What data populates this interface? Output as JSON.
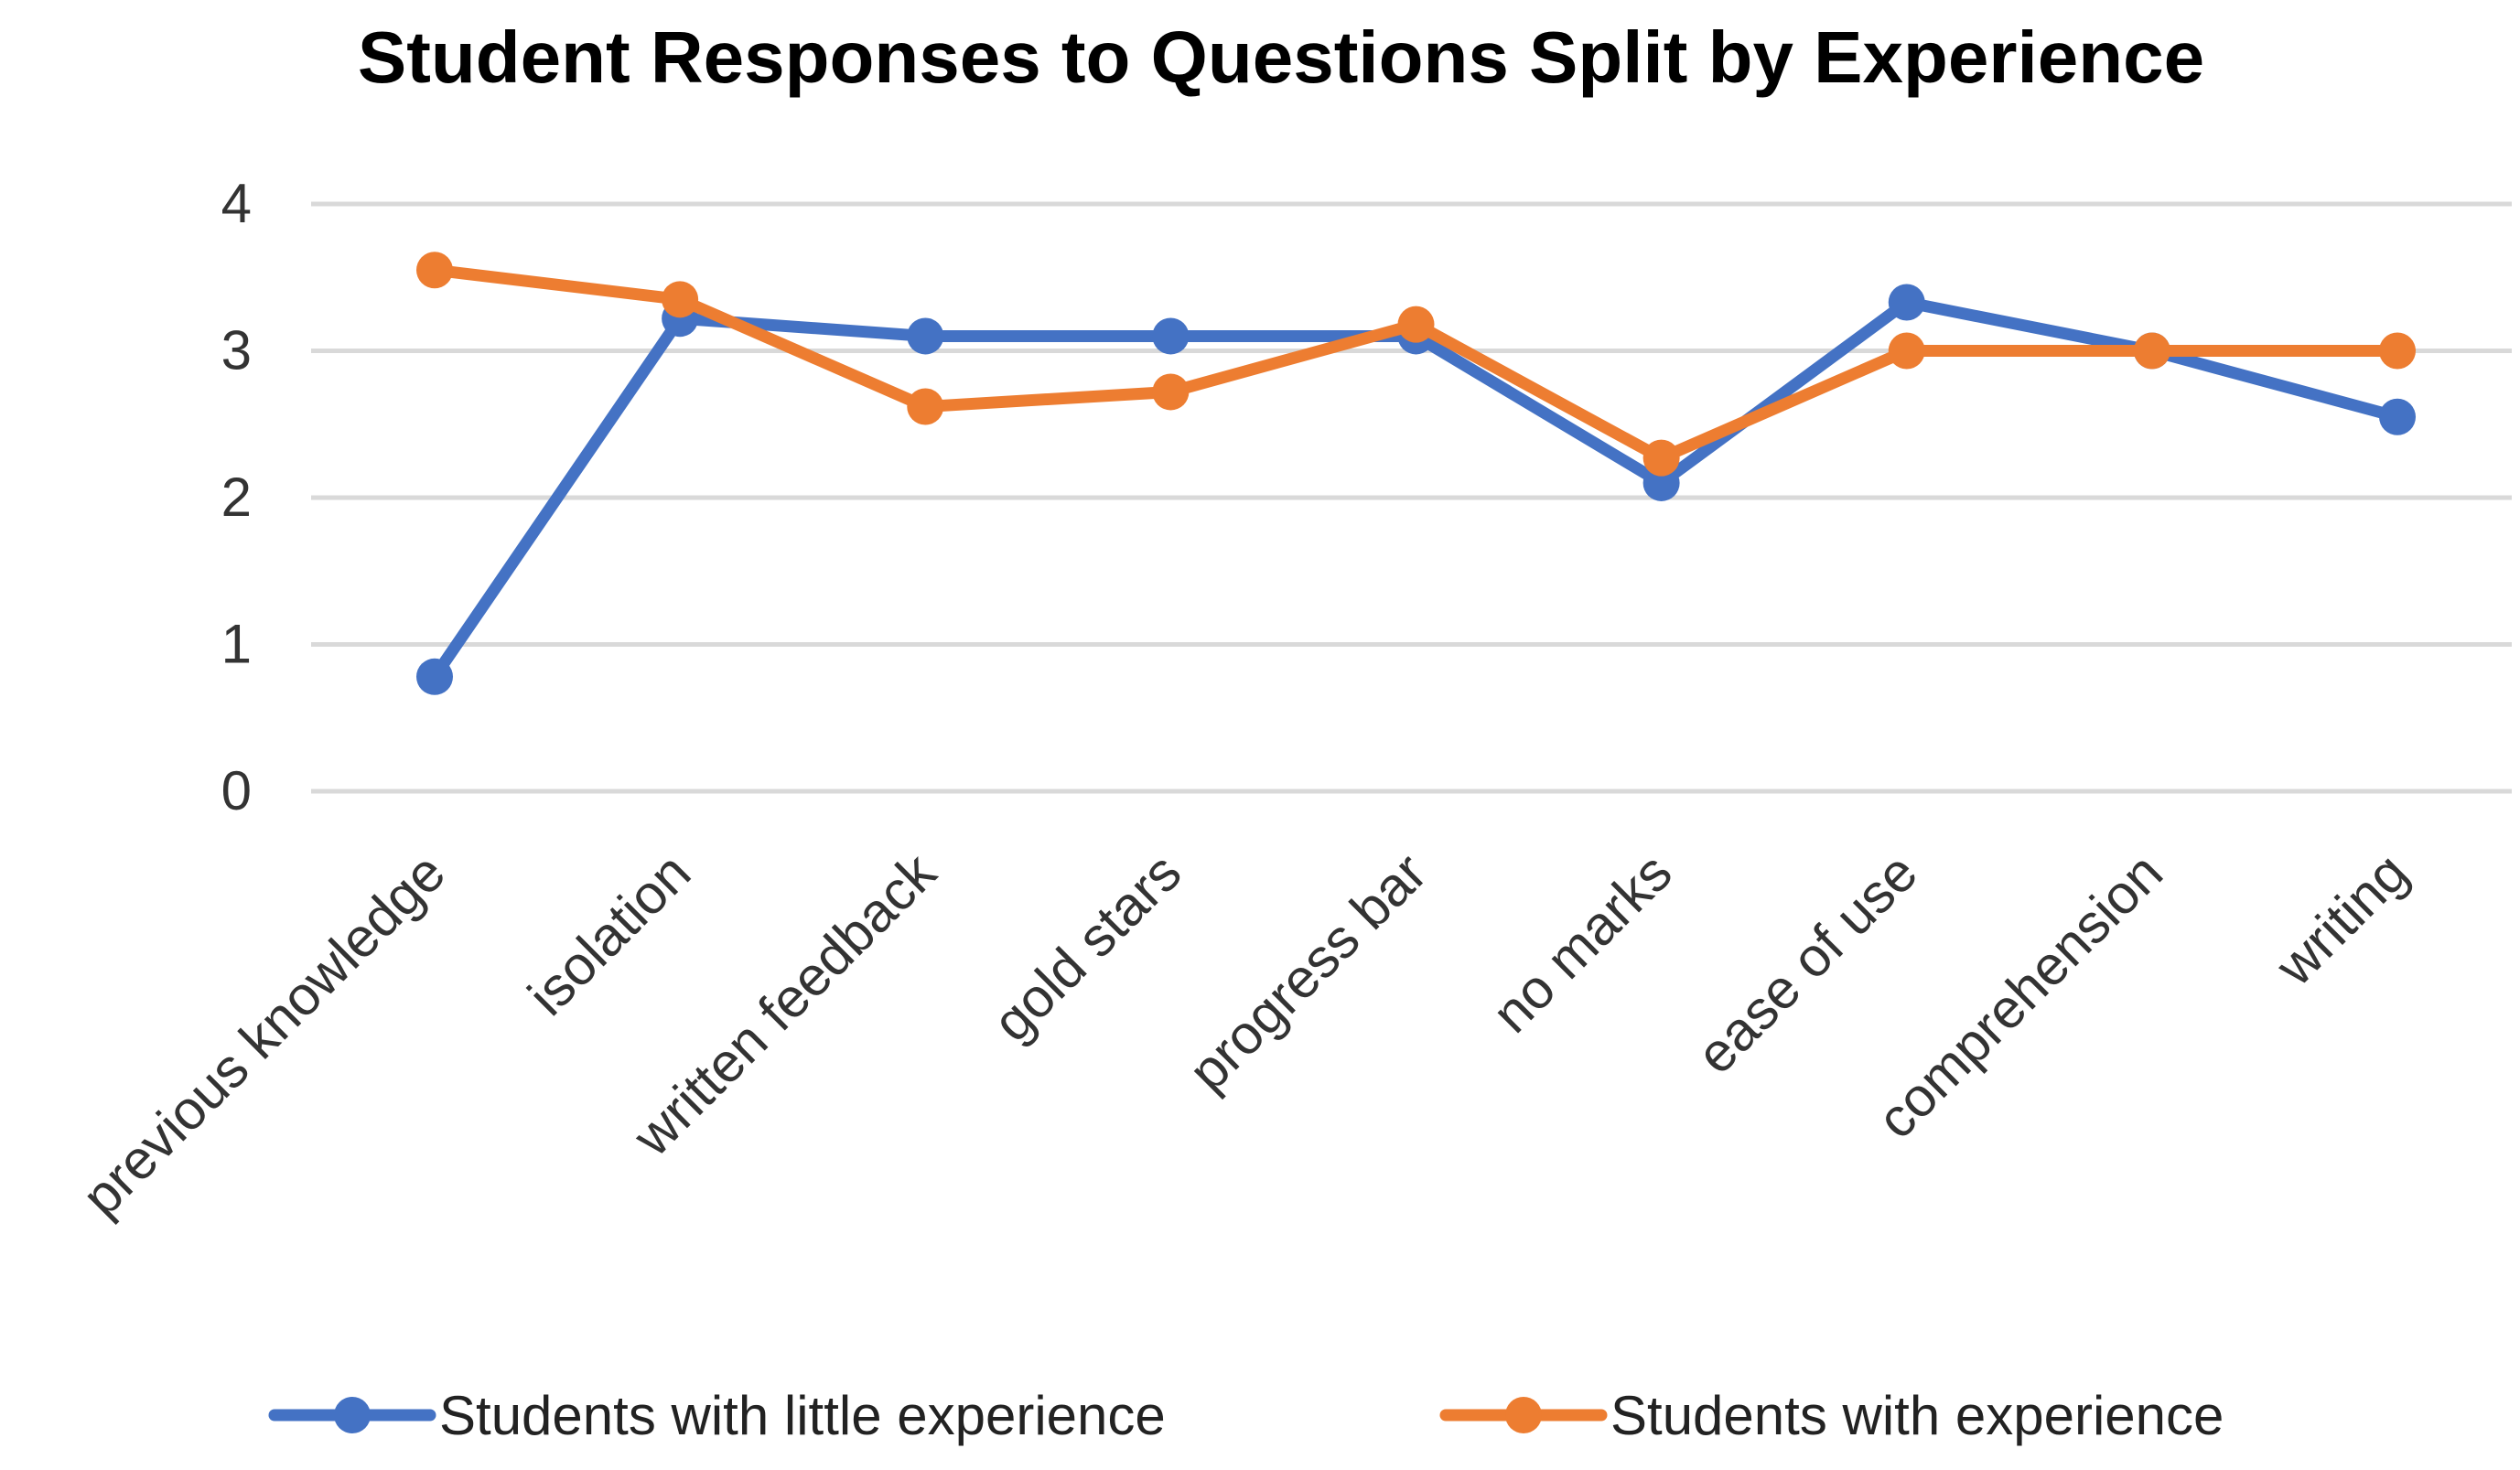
{
  "chart_data": {
    "type": "line",
    "title": "Student Responses to Questions Split by Experience",
    "xlabel": "",
    "ylabel": "",
    "ylim": [
      0,
      4
    ],
    "yticks": [
      0,
      1,
      2,
      3,
      4
    ],
    "grid": true,
    "legend_position": "bottom",
    "categories": [
      "previous knowledge",
      "isolation",
      "written feedback",
      "gold stars",
      "progress bar",
      "no marks",
      "ease of use",
      "comprehension",
      "writing"
    ],
    "series": [
      {
        "name": "Students with little experience",
        "color": "#4472c4",
        "values": [
          0.78,
          3.22,
          3.1,
          3.1,
          3.1,
          2.1,
          3.33,
          3.0,
          2.55
        ]
      },
      {
        "name": "Students with experience",
        "color": "#ed7d31",
        "values": [
          3.55,
          3.35,
          2.62,
          2.72,
          3.18,
          2.27,
          3.0,
          3.0,
          3.0
        ]
      }
    ]
  }
}
